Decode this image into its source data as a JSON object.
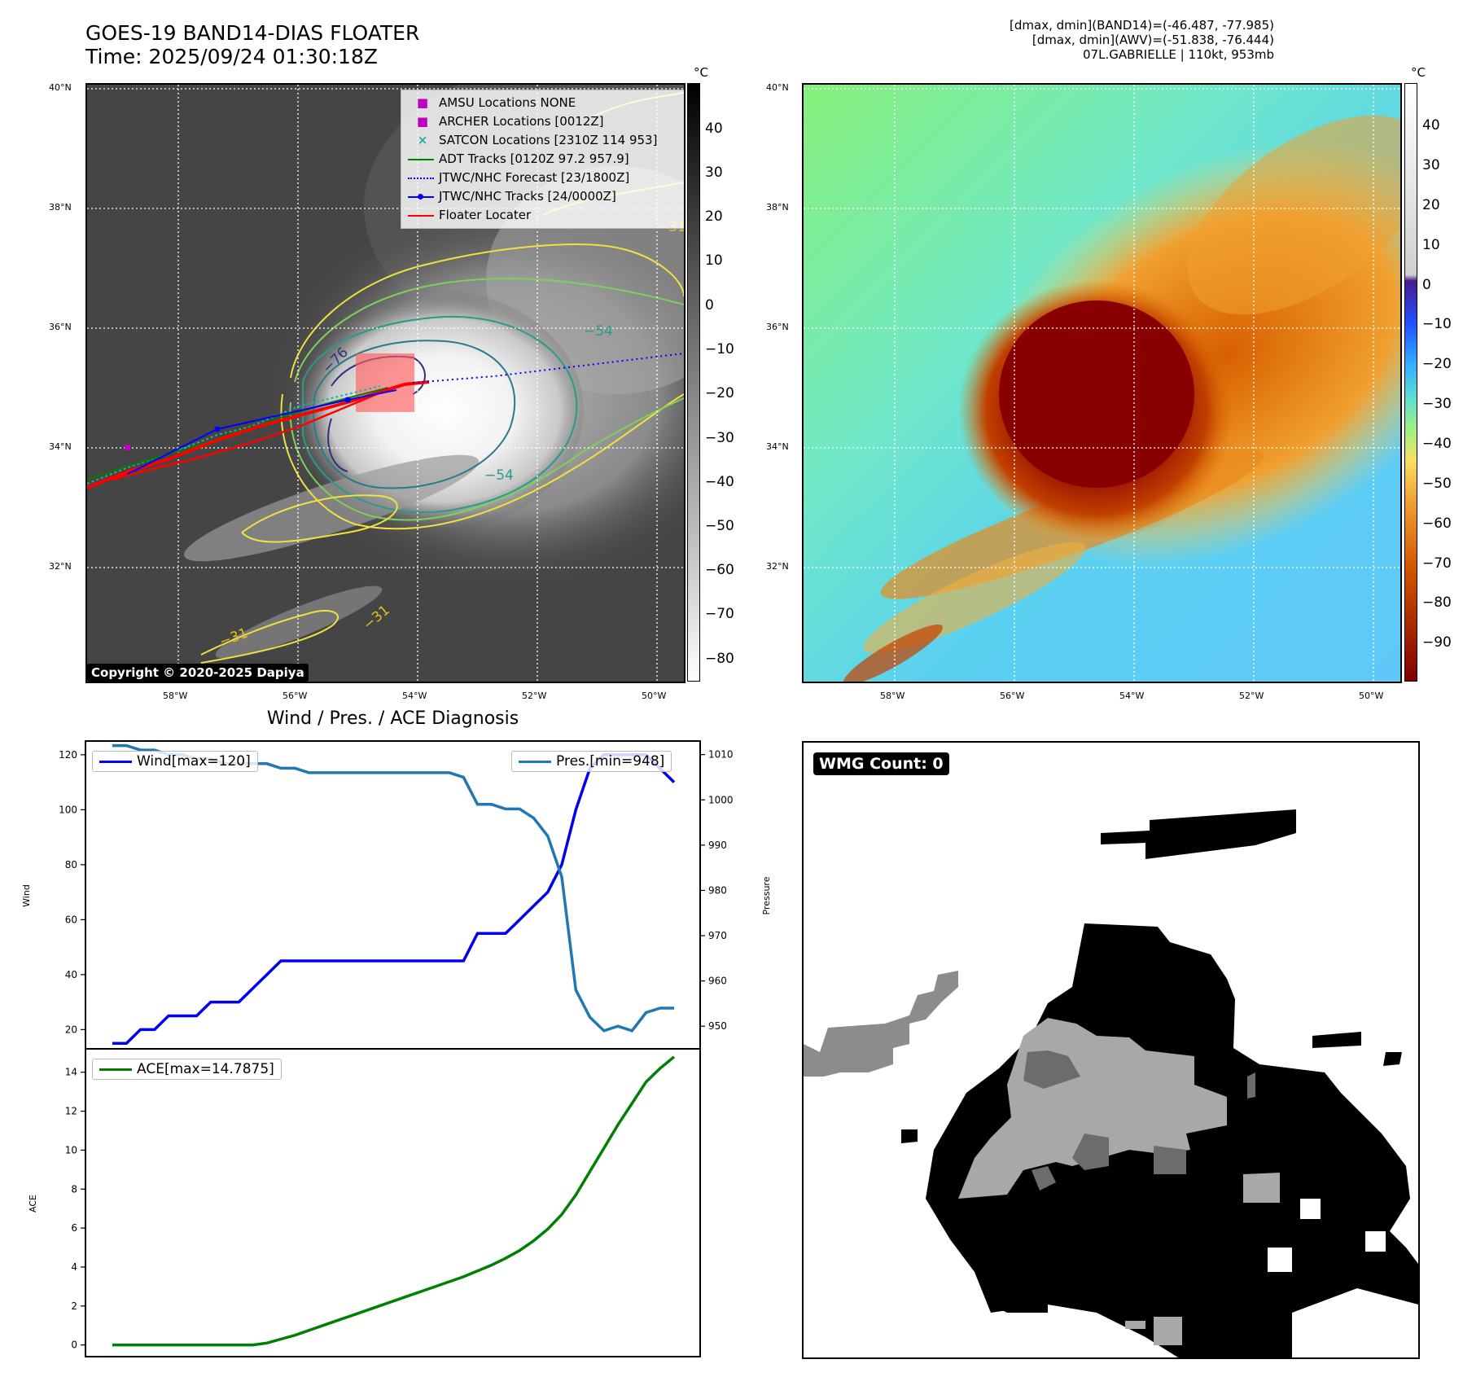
{
  "header": {
    "title_line1": "GOES-19 BAND14-DIAS FLOATER",
    "title_line2": "Time: 2025/09/24 01:30:18Z",
    "right_line1": "[dmax, dmin](BAND14)=(-46.487, -77.985)",
    "right_line2": "[dmax, dmin](AWV)=(-51.838, -76.444)",
    "right_line3": "07L.GABRIELLE | 110kt, 953mb"
  },
  "map_axes": {
    "lat_ticks": [
      "40°N",
      "38°N",
      "36°N",
      "34°N",
      "32°N"
    ],
    "lon_ticks": [
      "58°W",
      "56°W",
      "54°W",
      "52°W",
      "50°W"
    ],
    "unit": "°C"
  },
  "ir_panel": {
    "legend": [
      {
        "label": "AMSU Locations NONE",
        "color": "#c000c0",
        "kind": "square"
      },
      {
        "label": "ARCHER Locations [0012Z]",
        "color": "#c000c0",
        "kind": "square"
      },
      {
        "label": "SATCON Locations [2310Z 114 953]",
        "color": "#20b0a0",
        "kind": "x"
      },
      {
        "label": "ADT Tracks [0120Z 97.2 957.9]",
        "color": "#008000",
        "kind": "line"
      },
      {
        "label": "JTWC/NHC Forecast [23/1800Z]",
        "color": "#0000ff",
        "kind": "dotted"
      },
      {
        "label": "JTWC/NHC Tracks [24/0000Z]",
        "color": "#0000ff",
        "kind": "line-dot"
      },
      {
        "label": "Floater Locater",
        "color": "#ff0000",
        "kind": "line"
      }
    ],
    "colorbar_ticks": [
      "40",
      "30",
      "20",
      "10",
      "0",
      "−10",
      "−20",
      "−30",
      "−40",
      "−50",
      "−60",
      "−70",
      "−80"
    ],
    "contour_labels": [
      "−76",
      "−54",
      "−54",
      "−31",
      "−31",
      "−31"
    ],
    "copyright": "Copyright © 2020-2025 Dapiya"
  },
  "awv_panel": {
    "colorbar_ticks": [
      "40",
      "30",
      "20",
      "10",
      "0",
      "−10",
      "−20",
      "−30",
      "−40",
      "−50",
      "−60",
      "−70",
      "−80",
      "−90"
    ]
  },
  "diagnosis": {
    "title": "Wind / Pres. / ACE Diagnosis",
    "wind_ylabel": "Wind",
    "pres_ylabel": "Pressure",
    "ace_ylabel": "ACE",
    "wind_legend": "Wind[max=120]",
    "pres_legend": "Pres.[min=948]",
    "ace_legend": "ACE[max=14.7875]",
    "colors": {
      "wind": "#0000ee",
      "pres": "#1f77b4",
      "ace": "#008000"
    }
  },
  "wmg": {
    "label": "WMG Count: 0"
  },
  "chart_data": [
    {
      "type": "line",
      "title": "Wind / Pres. / ACE Diagnosis",
      "xlabel": "",
      "ylabel": "Wind",
      "ylim": [
        13,
        125
      ],
      "y_ticks": [
        20,
        40,
        60,
        80,
        100,
        120
      ],
      "series": [
        {
          "name": "Wind[max=120]",
          "values": [
            15,
            15,
            20,
            20,
            25,
            25,
            25,
            30,
            30,
            30,
            35,
            40,
            45,
            45,
            45,
            45,
            45,
            45,
            45,
            45,
            45,
            45,
            45,
            45,
            45,
            45,
            55,
            55,
            55,
            60,
            65,
            70,
            80,
            100,
            115,
            120,
            120,
            120,
            120,
            115,
            110
          ]
        }
      ],
      "y2label": "Pressure",
      "y2lim": [
        945,
        1013
      ],
      "y2_ticks": [
        950,
        960,
        970,
        980,
        990,
        1000,
        1010
      ],
      "series2": [
        {
          "name": "Pres.[min=948]",
          "values": [
            1012,
            1012,
            1011,
            1011,
            1010,
            1010,
            1009,
            1009,
            1008,
            1008,
            1008,
            1008,
            1007,
            1007,
            1006,
            1006,
            1006,
            1006,
            1006,
            1006,
            1006,
            1006,
            1006,
            1006,
            1006,
            1005,
            999,
            999,
            998,
            998,
            996,
            992,
            983,
            958,
            952,
            949,
            950,
            949,
            953,
            954,
            954
          ]
        }
      ]
    },
    {
      "type": "line",
      "ylabel": "ACE",
      "ylim": [
        -0.6,
        15.2
      ],
      "y_ticks": [
        0,
        2,
        4,
        6,
        8,
        10,
        12,
        14
      ],
      "series": [
        {
          "name": "ACE[max=14.7875]",
          "values": [
            0,
            0,
            0,
            0,
            0,
            0,
            0,
            0,
            0,
            0,
            0,
            0.1,
            0.3,
            0.5,
            0.75,
            1.0,
            1.25,
            1.5,
            1.75,
            2.0,
            2.25,
            2.5,
            2.75,
            3.0,
            3.25,
            3.5,
            3.8,
            4.1,
            4.45,
            4.85,
            5.35,
            5.95,
            6.7,
            7.7,
            8.9,
            10.1,
            11.3,
            12.4,
            13.5,
            14.2,
            14.79
          ]
        }
      ]
    }
  ]
}
